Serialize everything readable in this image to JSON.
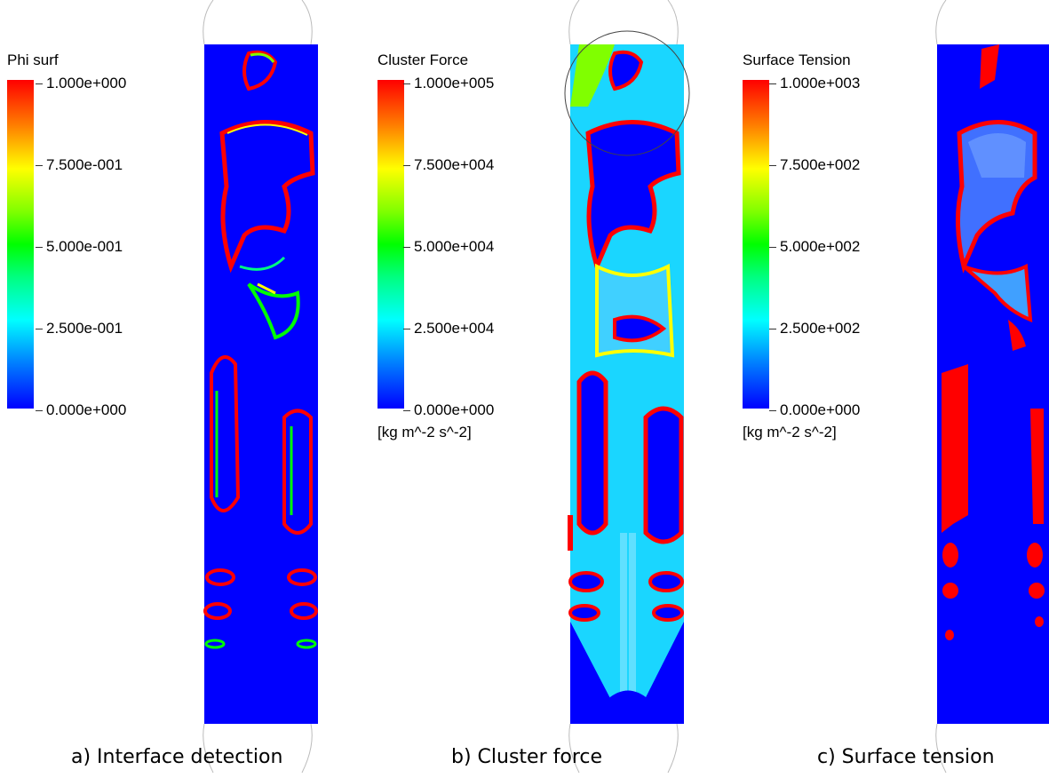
{
  "panels": [
    {
      "legend_title": "Phi surf",
      "ticks": [
        "1.000e+000",
        "7.500e-001",
        "5.000e-001",
        "2.500e-001",
        "0.000e+000"
      ],
      "unit": "",
      "caption": "a) Interface detection"
    },
    {
      "legend_title": "Cluster Force",
      "ticks": [
        "1.000e+005",
        "7.500e+004",
        "5.000e+004",
        "2.500e+004",
        "0.000e+000"
      ],
      "unit": "[kg m^-2 s^-2]",
      "caption": "b) Cluster force"
    },
    {
      "legend_title": "Surface Tension",
      "ticks": [
        "1.000e+003",
        "7.500e+002",
        "5.000e+002",
        "2.500e+002",
        "0.000e+000"
      ],
      "unit": "[kg m^-2 s^-2]",
      "caption": "c) Surface tension"
    }
  ],
  "colors": {
    "field_background": "#0000ff",
    "high": "#ff0000",
    "mid_high": "#ffff00",
    "mid": "#00ff00",
    "mid_low": "#00ffff"
  }
}
